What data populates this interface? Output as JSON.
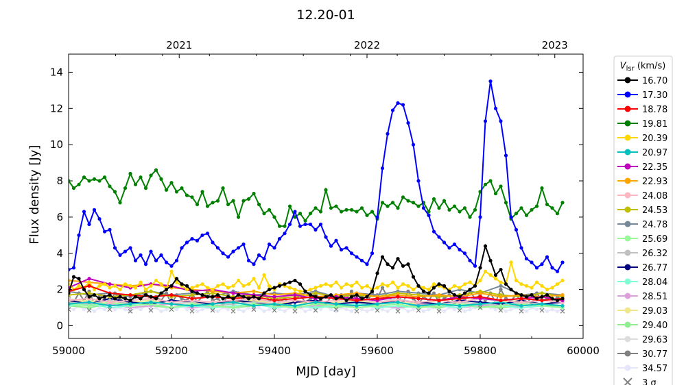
{
  "chart_data": {
    "type": "line",
    "title": "12.20-01",
    "xlabel": "MJD [day]",
    "ylabel": "Flux density [Jy]",
    "xlim": [
      59000,
      60000
    ],
    "ylim": [
      -0.7,
      15
    ],
    "xticks": [
      59000,
      59200,
      59400,
      59600,
      59800,
      60000
    ],
    "xtick_labels": [
      "59000",
      "59200",
      "59400",
      "59600",
      "59800",
      "60000"
    ],
    "yticks": [
      0,
      2,
      4,
      6,
      8,
      10,
      12,
      14
    ],
    "ytick_labels": [
      "0",
      "2",
      "4",
      "6",
      "8",
      "10",
      "12",
      "14"
    ],
    "top_axis": {
      "ticks_mjd": [
        59215,
        59580,
        59945
      ],
      "labels": [
        "2021",
        "2022",
        "2023"
      ]
    },
    "grid": false,
    "legend": {
      "title_main": "V",
      "title_sub": "lsr",
      "title_unit": " (km/s)",
      "placement": "outside-right",
      "sigma_label": "3 σ"
    },
    "detail_x": {
      "start": 59000,
      "step": 10
    },
    "coarse_x": {
      "start": 59000,
      "step": 40
    },
    "series": [
      {
        "name": "16.70",
        "color": "#000000",
        "res": "detail",
        "values": [
          1.8,
          2.7,
          2.6,
          2.0,
          1.6,
          1.7,
          1.5,
          1.6,
          1.7,
          1.5,
          1.6,
          1.5,
          1.4,
          1.6,
          1.5,
          1.7,
          1.6,
          1.5,
          1.8,
          2.0,
          2.2,
          2.6,
          2.3,
          2.2,
          1.9,
          1.8,
          1.7,
          1.6,
          1.6,
          1.7,
          1.5,
          1.6,
          1.5,
          1.7,
          1.6,
          1.5,
          1.6,
          1.5,
          1.8,
          2.0,
          2.1,
          2.2,
          2.3,
          2.4,
          2.5,
          2.3,
          1.9,
          1.7,
          1.6,
          1.5,
          1.6,
          1.7,
          1.5,
          1.6,
          1.4,
          1.6,
          1.7,
          1.5,
          1.6,
          1.9,
          2.9,
          3.8,
          3.4,
          3.2,
          3.7,
          3.3,
          3.4,
          2.7,
          2.2,
          1.9,
          1.8,
          2.1,
          2.3,
          2.2,
          1.9,
          1.7,
          1.6,
          1.8,
          2.0,
          2.2,
          3.2,
          4.4,
          3.6,
          2.8,
          3.1,
          2.3,
          2.0,
          1.8,
          1.7,
          1.6,
          1.7,
          1.5,
          1.6,
          1.7,
          1.5,
          1.4,
          1.5
        ]
      },
      {
        "name": "17.30",
        "color": "#0000ff",
        "res": "detail",
        "values": [
          3.1,
          3.2,
          5.0,
          6.3,
          5.6,
          6.4,
          5.9,
          5.2,
          5.3,
          4.3,
          3.9,
          4.1,
          4.3,
          3.6,
          3.9,
          3.4,
          4.1,
          3.6,
          3.9,
          3.5,
          3.3,
          3.6,
          4.3,
          4.6,
          4.8,
          4.7,
          5.0,
          5.1,
          4.6,
          4.3,
          4.0,
          3.8,
          4.1,
          4.3,
          4.5,
          3.6,
          3.4,
          3.9,
          3.7,
          4.5,
          4.3,
          4.8,
          5.1,
          5.6,
          6.3,
          5.5,
          5.6,
          5.6,
          5.3,
          5.6,
          4.9,
          4.4,
          4.7,
          4.2,
          4.3,
          4.0,
          3.8,
          3.6,
          3.4,
          4.0,
          6.0,
          8.7,
          10.6,
          11.9,
          12.3,
          12.2,
          11.2,
          10.0,
          8.0,
          6.5,
          6.1,
          5.2,
          4.9,
          4.6,
          4.3,
          4.5,
          4.2,
          4.0,
          3.6,
          3.3,
          6.0,
          11.3,
          13.5,
          12.0,
          11.3,
          9.4,
          6.0,
          5.3,
          4.3,
          3.7,
          3.5,
          3.2,
          3.4,
          3.8,
          3.2,
          3.0,
          3.5
        ]
      },
      {
        "name": "18.78",
        "color": "#ff0000",
        "res": "coarse",
        "values": [
          1.9,
          2.2,
          1.8,
          1.7,
          1.6,
          1.7,
          1.5,
          1.6,
          1.5,
          1.6,
          1.4,
          1.5,
          1.6,
          1.5,
          1.4,
          1.5,
          1.6,
          1.5,
          1.4,
          1.5,
          1.6,
          1.4,
          1.5,
          1.4,
          1.5
        ]
      },
      {
        "name": "19.81",
        "color": "#008000",
        "res": "detail",
        "values": [
          8.0,
          7.6,
          7.8,
          8.2,
          8.0,
          8.1,
          8.0,
          8.2,
          7.7,
          7.4,
          6.8,
          7.6,
          8.4,
          7.8,
          8.2,
          7.6,
          8.3,
          8.6,
          8.1,
          7.5,
          7.9,
          7.4,
          7.6,
          7.2,
          7.1,
          6.7,
          7.4,
          6.6,
          6.8,
          6.9,
          7.6,
          6.7,
          6.9,
          6.0,
          6.9,
          7.0,
          7.3,
          6.7,
          6.2,
          6.4,
          6.0,
          5.5,
          5.5,
          6.6,
          6.0,
          6.2,
          5.8,
          6.2,
          6.5,
          6.3,
          7.5,
          6.5,
          6.6,
          6.3,
          6.4,
          6.4,
          6.3,
          6.5,
          6.1,
          6.3,
          5.9,
          6.8,
          6.6,
          6.8,
          6.5,
          7.1,
          6.9,
          6.8,
          6.6,
          6.8,
          6.3,
          7.0,
          6.5,
          6.9,
          6.4,
          6.6,
          6.3,
          6.5,
          6.0,
          6.4,
          7.4,
          7.8,
          8.0,
          7.3,
          7.7,
          6.8,
          5.9,
          6.2,
          6.5,
          6.1,
          6.4,
          6.6,
          7.6,
          6.7,
          6.5,
          6.2,
          6.8
        ]
      },
      {
        "name": "20.39",
        "color": "#ffd700",
        "res": "detail",
        "values": [
          2.3,
          2.0,
          2.2,
          2.1,
          2.4,
          2.0,
          2.2,
          2.3,
          2.1,
          2.2,
          2.0,
          2.3,
          2.2,
          2.1,
          2.4,
          2.0,
          2.2,
          2.5,
          2.3,
          2.0,
          3.0,
          2.4,
          2.2,
          2.0,
          2.1,
          2.2,
          2.3,
          2.1,
          2.0,
          2.2,
          2.3,
          2.1,
          2.2,
          2.5,
          2.2,
          2.3,
          2.6,
          2.1,
          2.8,
          2.2,
          2.0,
          2.3,
          2.2,
          2.1,
          2.0,
          1.9,
          1.9,
          2.0,
          2.1,
          2.2,
          2.3,
          2.2,
          2.4,
          2.1,
          2.3,
          2.2,
          2.4,
          2.1,
          2.2,
          2.0,
          2.1,
          2.3,
          2.2,
          2.4,
          2.1,
          2.3,
          2.2,
          2.0,
          2.2,
          2.1,
          2.0,
          2.3,
          2.2,
          2.1,
          2.0,
          2.2,
          2.1,
          2.3,
          2.4,
          2.2,
          2.5,
          3.0,
          2.8,
          2.6,
          2.4,
          2.3,
          3.5,
          2.5,
          2.3,
          2.2,
          2.1,
          2.4,
          2.2,
          2.0,
          2.1,
          2.3,
          2.5
        ]
      },
      {
        "name": "20.97",
        "color": "#00bfbf",
        "res": "coarse",
        "values": [
          1.2,
          1.3,
          1.1,
          1.2,
          1.3,
          1.2,
          1.1,
          1.2,
          1.3,
          1.1,
          1.2,
          1.1,
          1.3,
          1.2,
          1.1,
          1.2,
          1.3,
          1.1,
          1.2,
          1.1,
          1.2,
          1.3,
          1.1,
          1.2,
          1.1
        ]
      },
      {
        "name": "22.35",
        "color": "#bf00bf",
        "res": "coarse",
        "values": [
          2.1,
          2.6,
          2.3,
          2.1,
          2.3,
          2.2,
          1.9,
          2.0,
          1.8,
          1.7,
          1.6,
          1.7,
          1.5,
          1.6,
          1.5,
          1.4,
          1.6,
          1.5,
          1.4,
          1.6,
          1.5,
          1.4,
          1.5,
          1.6,
          1.4
        ]
      },
      {
        "name": "22.93",
        "color": "#ffa500",
        "res": "coarse",
        "values": [
          2.5,
          2.4,
          2.3,
          2.2,
          2.3,
          2.1,
          2.0,
          1.9,
          1.8,
          1.9,
          1.7,
          1.8,
          1.6,
          1.7,
          1.8,
          1.6,
          1.7,
          1.6,
          1.7,
          1.6,
          1.8,
          1.6,
          1.7,
          1.6,
          1.7
        ]
      },
      {
        "name": "24.08",
        "color": "#ffb6c1",
        "res": "coarse",
        "values": [
          1.4,
          1.5,
          1.3,
          1.4,
          1.5,
          1.3,
          1.4,
          1.3,
          1.4,
          1.5,
          1.3,
          1.4,
          1.3,
          1.4,
          1.5,
          1.3,
          1.4,
          1.3,
          1.4,
          1.3,
          1.5,
          1.4,
          1.3,
          1.4,
          1.3
        ]
      },
      {
        "name": "24.53",
        "color": "#bfbf00",
        "res": "coarse",
        "values": [
          1.7,
          1.8,
          1.6,
          1.7,
          1.9,
          1.6,
          1.7,
          1.8,
          1.6,
          1.7,
          1.5,
          1.6,
          1.8,
          1.6,
          1.7,
          1.6,
          1.8,
          1.7,
          1.6,
          1.7,
          1.9,
          1.7,
          1.6,
          1.8,
          1.6
        ]
      },
      {
        "name": "24.78",
        "color": "#778899",
        "res": "coarse",
        "values": [
          1.9,
          1.7,
          1.8,
          1.6,
          1.9,
          1.7,
          1.8,
          1.6,
          1.9,
          1.7,
          1.8,
          1.7,
          1.9,
          1.6,
          1.8,
          1.7,
          1.9,
          1.8,
          1.7,
          2.0,
          1.8,
          2.2,
          1.7,
          1.8,
          1.7
        ]
      },
      {
        "name": "25.69",
        "color": "#98fb98",
        "res": "coarse",
        "values": [
          1.2,
          1.1,
          1.3,
          1.1,
          1.2,
          1.0,
          1.2,
          1.1,
          1.0,
          1.2,
          1.1,
          1.0,
          1.2,
          1.1,
          1.0,
          1.1,
          1.2,
          1.0,
          1.1,
          1.2,
          1.0,
          1.1,
          1.2,
          1.1,
          1.0
        ]
      },
      {
        "name": "26.32",
        "color": "#c0c0c0",
        "res": "coarse",
        "values": [
          1.3,
          1.2,
          1.4,
          1.2,
          1.3,
          1.2,
          1.3,
          1.1,
          1.2,
          1.3,
          1.2,
          1.1,
          1.3,
          1.2,
          1.1,
          1.2,
          1.3,
          1.1,
          1.2,
          1.3,
          1.2,
          1.1,
          1.3,
          1.2,
          1.1
        ]
      },
      {
        "name": "26.77",
        "color": "#000080",
        "res": "coarse",
        "values": [
          1.4,
          1.2,
          1.5,
          1.3,
          1.2,
          1.4,
          1.3,
          1.2,
          1.4,
          1.3,
          1.1,
          1.3,
          1.4,
          1.2,
          1.3,
          1.2,
          1.4,
          1.3,
          1.2,
          1.4,
          1.3,
          1.2,
          1.4,
          1.2,
          1.3
        ]
      },
      {
        "name": "28.04",
        "color": "#7fffd4",
        "res": "coarse",
        "values": [
          1.1,
          1.2,
          1.0,
          1.1,
          1.2,
          1.0,
          1.1,
          1.0,
          1.1,
          1.2,
          1.0,
          1.1,
          1.0,
          1.1,
          1.2,
          1.0,
          1.1,
          1.0,
          1.1,
          1.0,
          1.2,
          1.1,
          1.0,
          1.1,
          1.0
        ]
      },
      {
        "name": "28.51",
        "color": "#dda0dd",
        "res": "coarse",
        "values": [
          1.2,
          1.1,
          1.2,
          1.0,
          1.1,
          1.2,
          1.0,
          1.1,
          1.0,
          1.2,
          1.1,
          1.0,
          1.1,
          1.2,
          1.0,
          1.1,
          1.0,
          1.2,
          1.1,
          1.0,
          1.1,
          1.2,
          1.0,
          1.1,
          1.0
        ]
      },
      {
        "name": "29.03",
        "color": "#f0e68c",
        "res": "coarse",
        "values": [
          1.3,
          1.4,
          1.2,
          1.3,
          1.4,
          1.2,
          1.3,
          1.2,
          1.3,
          1.4,
          1.2,
          1.3,
          1.2,
          1.3,
          1.4,
          1.2,
          1.3,
          1.2,
          1.4,
          1.3,
          1.2,
          1.3,
          1.4,
          1.2,
          1.3
        ]
      },
      {
        "name": "29.40",
        "color": "#90ee90",
        "res": "coarse",
        "values": [
          1.1,
          1.0,
          1.2,
          1.0,
          1.1,
          1.0,
          1.2,
          1.1,
          1.0,
          1.1,
          1.2,
          1.0,
          1.1,
          1.0,
          1.2,
          1.1,
          1.0,
          1.1,
          1.0,
          1.2,
          1.1,
          1.0,
          1.1,
          1.2,
          1.0
        ]
      },
      {
        "name": "29.63",
        "color": "#dcdcdc",
        "res": "coarse",
        "values": [
          1.5,
          1.3,
          1.4,
          1.2,
          1.5,
          1.3,
          1.4,
          1.2,
          1.3,
          1.5,
          1.2,
          1.4,
          1.3,
          1.2,
          1.4,
          1.3,
          1.5,
          1.2,
          1.4,
          1.3,
          1.5,
          1.3,
          1.2,
          1.4,
          1.3
        ]
      },
      {
        "name": "30.77",
        "color": "#808080",
        "res": "detail",
        "values": [
          1.6,
          1.3,
          1.8,
          1.4,
          1.9,
          1.2,
          1.7,
          1.5,
          1.3,
          1.8,
          1.4,
          1.6,
          1.2,
          1.7,
          1.5,
          1.9,
          1.3,
          1.6,
          1.4,
          1.8,
          1.2,
          1.7,
          1.5,
          1.4,
          1.8,
          1.3,
          1.6,
          1.9,
          1.4,
          1.5,
          1.2,
          1.7,
          1.4,
          1.8,
          1.3,
          1.6,
          1.5,
          1.2,
          1.8,
          1.4,
          1.6,
          1.3,
          1.5,
          1.2,
          1.4,
          1.7,
          1.3,
          1.5,
          1.8,
          1.4,
          1.2,
          1.6,
          1.3,
          1.7,
          1.5,
          1.9,
          1.4,
          1.6,
          1.3,
          1.8,
          1.5,
          2.1,
          1.6,
          1.4,
          1.7,
          1.3,
          1.9,
          1.5,
          1.2,
          1.6,
          1.4,
          1.8,
          1.3,
          1.5,
          1.7,
          1.2,
          1.6,
          1.4,
          1.9,
          1.5,
          1.7,
          1.4,
          1.8,
          1.3,
          2.0,
          1.5,
          1.4,
          1.7,
          1.3,
          1.6,
          1.2,
          1.8,
          1.4,
          1.5,
          1.3,
          1.6,
          1.4
        ]
      },
      {
        "name": "34.57",
        "color": "#e6e6fa",
        "res": "detail",
        "values": [
          1.0,
          0.9,
          1.1,
          0.9,
          1.0,
          0.8,
          1.0,
          0.9,
          1.1,
          0.9,
          1.0,
          0.9,
          0.8,
          1.0,
          0.9,
          1.1,
          0.9,
          1.0,
          0.8,
          0.9,
          1.0,
          0.9,
          1.1,
          0.9,
          1.0,
          0.8,
          0.9,
          1.0,
          0.9,
          0.8,
          1.0,
          0.9,
          1.1,
          0.9,
          0.8,
          1.0,
          0.9,
          1.0,
          0.8,
          0.9,
          1.0,
          0.9,
          0.8,
          1.0,
          0.9,
          1.0,
          0.8,
          0.9,
          1.0,
          0.9,
          1.1,
          0.9,
          0.8,
          1.0,
          0.9,
          0.8,
          1.0,
          0.9,
          0.8,
          0.9,
          1.0,
          0.9,
          0.8,
          1.0,
          0.9,
          1.0,
          0.8,
          0.9,
          1.0,
          0.8,
          0.9,
          1.0,
          0.9,
          0.8,
          1.0,
          0.9,
          1.0,
          0.8,
          0.9,
          1.0,
          1.2,
          1.1,
          1.0,
          0.9,
          1.0,
          0.8,
          0.9,
          1.0,
          0.9,
          0.8,
          1.0,
          0.9,
          1.0,
          0.8,
          0.9,
          0.8,
          0.9
        ]
      }
    ],
    "sigma3": {
      "name": "3 σ",
      "color": "#808080",
      "res": "coarse",
      "values": [
        0.9,
        0.85,
        0.9,
        0.8,
        0.85,
        0.9,
        0.8,
        0.85,
        0.8,
        0.9,
        0.85,
        0.8,
        0.85,
        0.9,
        0.8,
        0.85,
        0.8,
        0.85,
        0.8,
        0.85,
        1.0,
        0.85,
        0.8,
        0.85,
        0.8
      ]
    }
  }
}
